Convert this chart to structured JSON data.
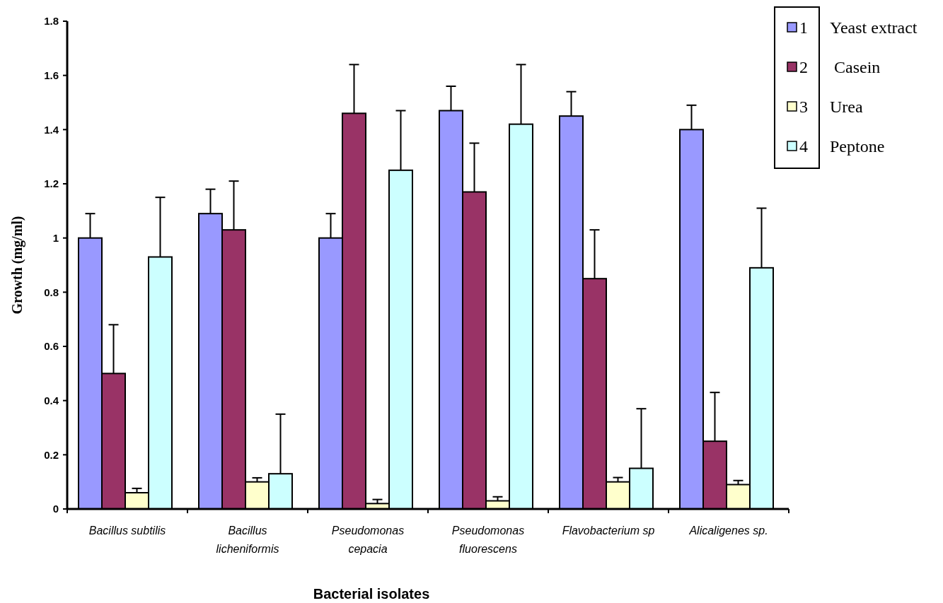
{
  "chart_data": {
    "type": "bar",
    "xlabel": "Bacterial isolates",
    "ylabel": "Growth (mg/ml)",
    "categories": [
      "Bacillus subtilis",
      "Bacillus licheniformis",
      "Pseudomonas cepacia",
      "Pseudomonas fluorescens",
      "Flavobacterium sp",
      "Alicaligenes sp."
    ],
    "series": [
      {
        "name": "Yeast extract",
        "color": "#9999ff",
        "values": [
          1.0,
          1.09,
          1.0,
          1.47,
          1.45,
          1.4
        ],
        "errors": [
          0.09,
          0.09,
          0.09,
          0.09,
          0.09,
          0.09
        ]
      },
      {
        "name": "Casein",
        "color": "#993366",
        "values": [
          0.5,
          1.03,
          1.46,
          1.17,
          0.85,
          0.25
        ],
        "errors": [
          0.18,
          0.18,
          0.18,
          0.18,
          0.18,
          0.18
        ]
      },
      {
        "name": "Urea",
        "color": "#ffffcc",
        "values": [
          0.06,
          0.1,
          0.02,
          0.03,
          0.1,
          0.09
        ],
        "errors": [
          0.016,
          0.015,
          0.015,
          0.015,
          0.016,
          0.015
        ]
      },
      {
        "name": "Peptone",
        "color": "#ccffff",
        "values": [
          0.93,
          0.13,
          1.25,
          1.42,
          0.15,
          0.89
        ],
        "errors": [
          0.22,
          0.22,
          0.22,
          0.22,
          0.22,
          0.22
        ]
      }
    ],
    "annotations": [
      "1",
      "2",
      "3",
      "4"
    ],
    "ylim": [
      0,
      1.8
    ],
    "yticks": [
      0,
      0.2,
      0.4,
      0.6,
      0.8,
      1,
      1.2,
      1.4,
      1.6,
      1.8
    ],
    "grid": false,
    "legend": "top right"
  }
}
